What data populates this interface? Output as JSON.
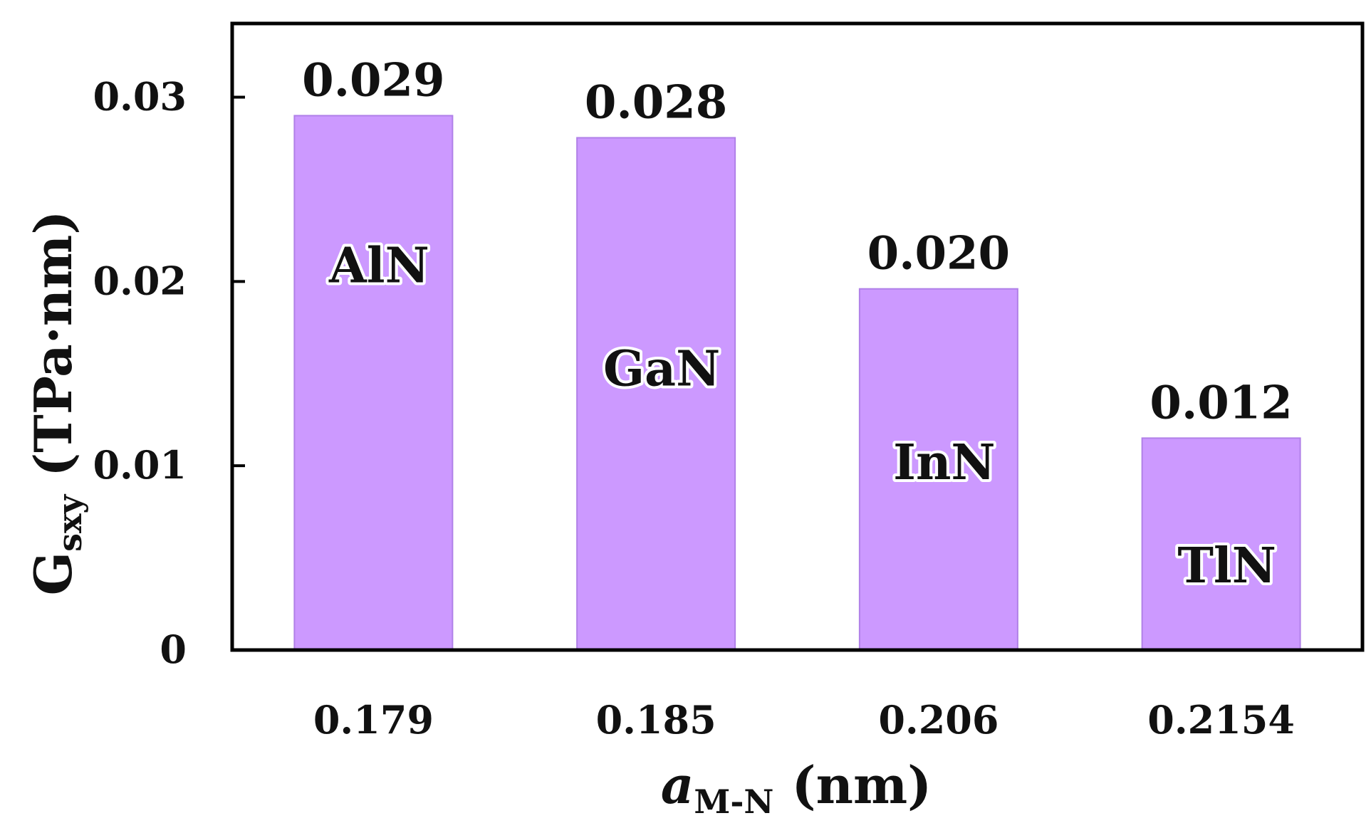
{
  "chart_data": {
    "type": "bar",
    "categories": [
      "0.179",
      "0.185",
      "0.206",
      "0.2154"
    ],
    "values": [
      0.029,
      0.0278,
      0.0196,
      0.0115
    ],
    "data_labels": [
      "0.029",
      "0.028",
      "0.020",
      "0.012"
    ],
    "bar_names": [
      "AlN",
      "GaN",
      "InN",
      "TlN"
    ],
    "ylim": [
      0,
      0.034
    ],
    "yticks": [
      0,
      0.01,
      0.02,
      0.03
    ],
    "ytick_labels": [
      "0",
      "0.01",
      "0.02",
      "0.03"
    ],
    "xlabel": {
      "main": "a",
      "sub": "M-N",
      "unit": " (nm)"
    },
    "ylabel": {
      "main": "G",
      "sub": "sxy",
      "unit": " (TPa·nm)"
    },
    "bar_color": "#cc99ff",
    "bar_edge_color": "#b080e8",
    "grid": false,
    "legend": "none"
  }
}
